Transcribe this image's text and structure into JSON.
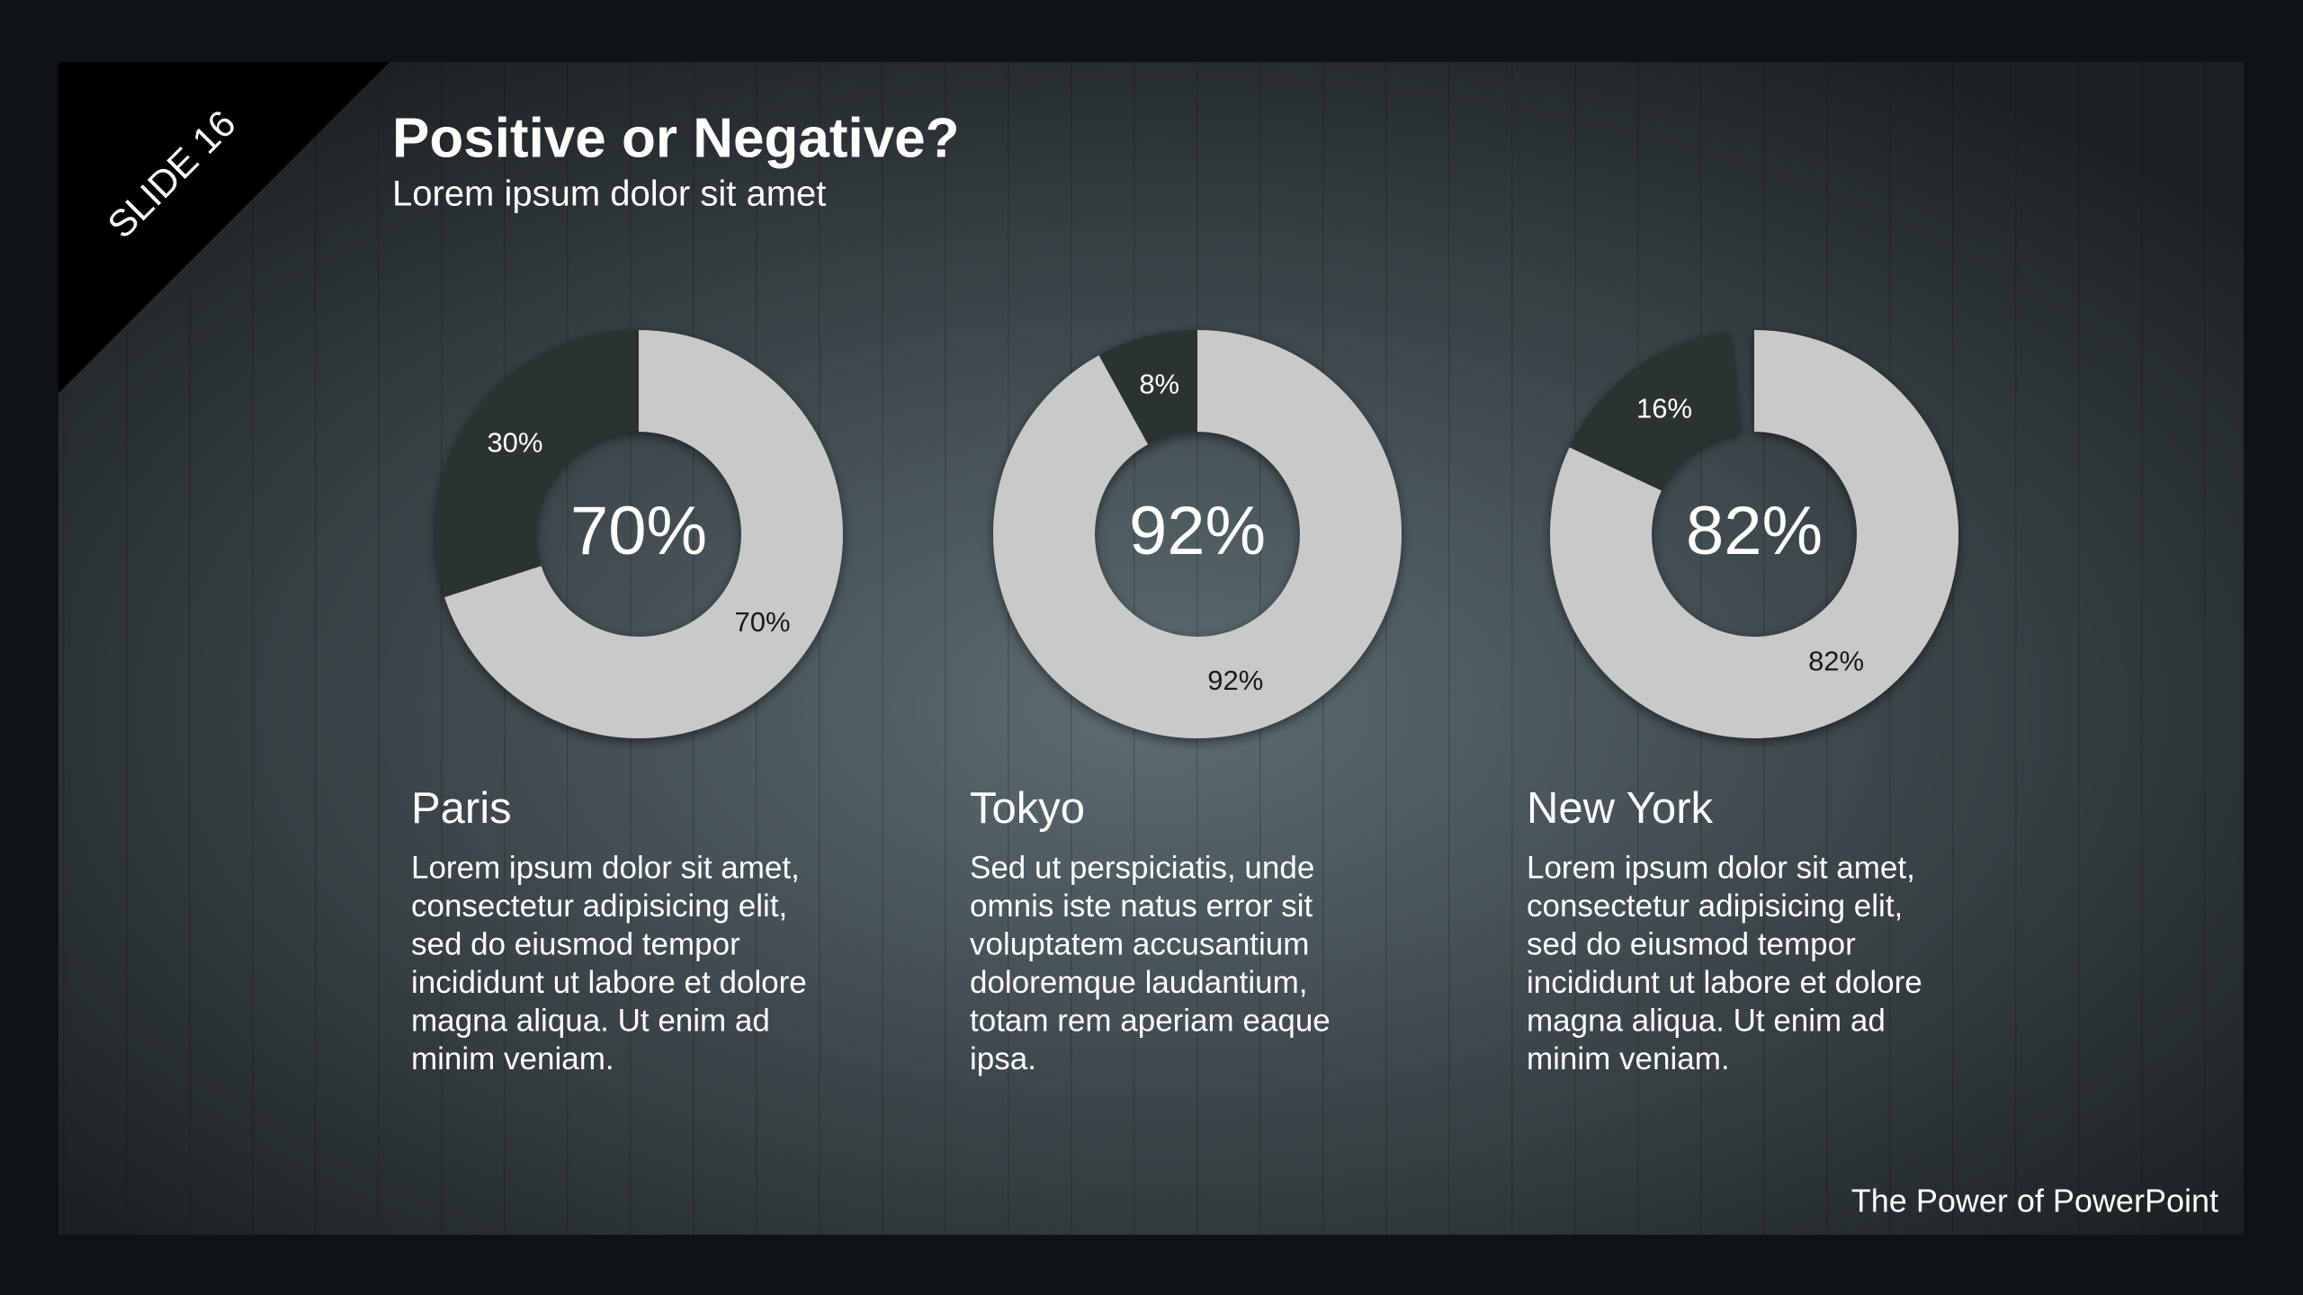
{
  "slide_label": "SLIDE 16",
  "title": "Positive or Negative?",
  "subtitle": "Lorem ipsum dolor sit amet",
  "footer": "The Power of PowerPoint",
  "chart_data": [
    {
      "type": "donut",
      "title": "Paris",
      "values": [
        70,
        30
      ],
      "value_labels": [
        "70%",
        "30%"
      ],
      "colors": [
        "#c9c9c9",
        "#2a3033"
      ],
      "description": [
        "Lorem ipsum dolor sit amet,",
        "consectetur adipisicing elit,",
        "sed do eiusmod tempor",
        "incididunt ut labore et dolore",
        "magna aliqua. Ut enim ad",
        "minim veniam."
      ]
    },
    {
      "type": "donut",
      "title": "Tokyo",
      "values": [
        92,
        8
      ],
      "value_labels": [
        "92%",
        "8%"
      ],
      "colors": [
        "#c9c9c9",
        "#2a3033"
      ],
      "description": [
        "Sed ut perspiciatis, unde",
        "omnis iste natus error sit",
        "voluptatem accusantium",
        "doloremque laudantium,",
        "totam rem aperiam eaque",
        "ipsa."
      ]
    },
    {
      "type": "donut",
      "title": "New York",
      "values": [
        82,
        16
      ],
      "value_labels": [
        "82%",
        "16%"
      ],
      "colors": [
        "#c9c9c9",
        "#2a3033"
      ],
      "description": [
        "Lorem ipsum dolor sit amet,",
        "consectetur adipisicing elit,",
        "sed do eiusmod tempor",
        "incididunt ut labore et dolore",
        "magna aliqua. Ut enim ad",
        "minim veniam."
      ]
    }
  ]
}
